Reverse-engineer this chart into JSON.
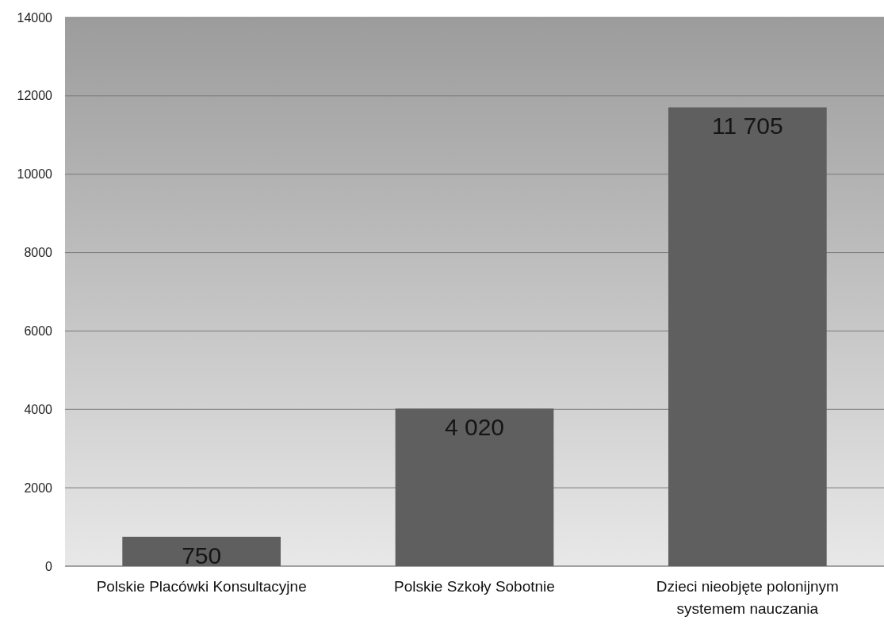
{
  "chart_data": {
    "type": "bar",
    "categories": [
      "Polskie Placówki Konsultacyjne",
      "Polskie Szkoły Sobotnie",
      "Dzieci nieobjęte polonijnym systemem nauczania"
    ],
    "values": [
      750,
      4020,
      11705
    ],
    "value_labels": [
      "750",
      "4 020",
      "11 705"
    ],
    "color": "#5f5f5f",
    "ylim": [
      0,
      14000
    ],
    "yticks": [
      0,
      2000,
      4000,
      6000,
      8000,
      10000,
      12000,
      14000
    ],
    "grid": "y"
  }
}
